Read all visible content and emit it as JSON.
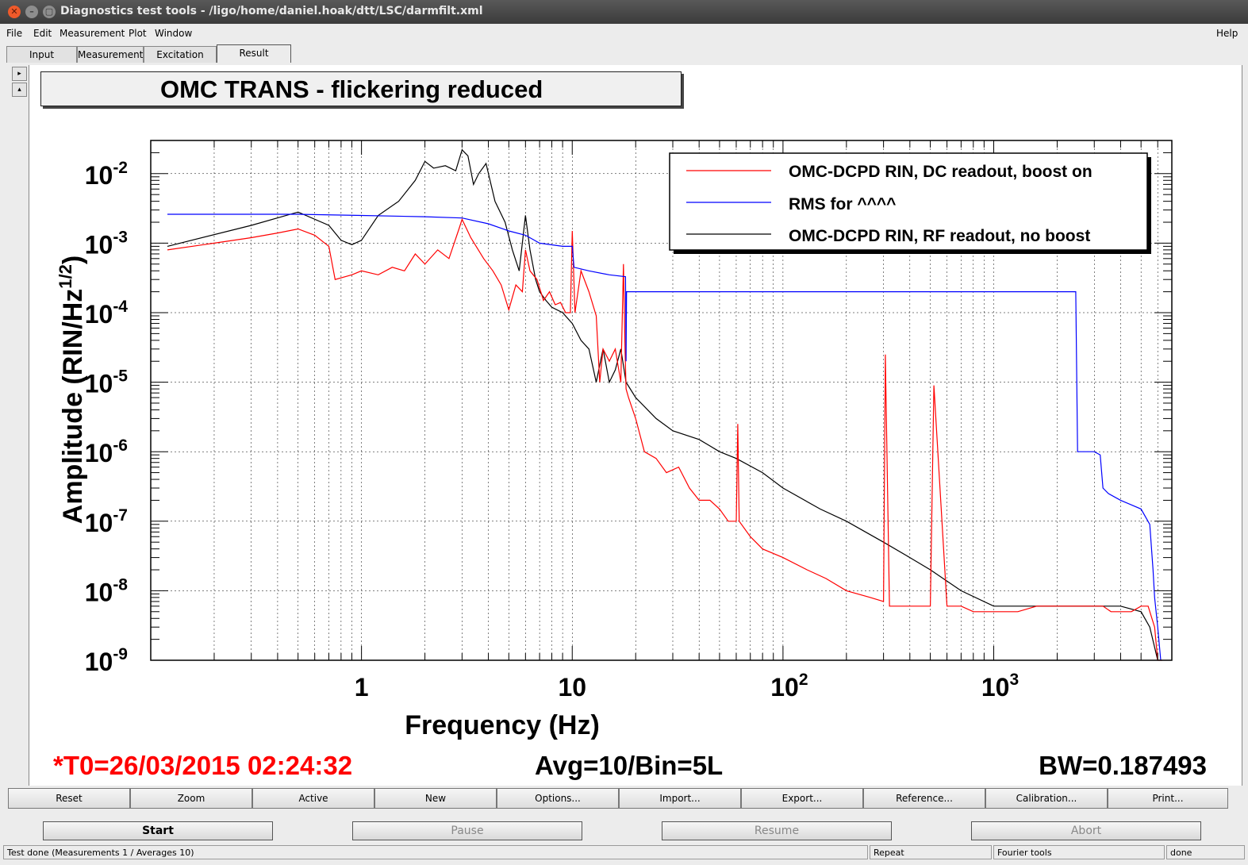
{
  "window": {
    "title": "Diagnostics test tools - /ligo/home/daniel.hoak/dtt/LSC/darmfilt.xml"
  },
  "menu": {
    "items": [
      "File",
      "Edit",
      "Measurement",
      "Plot",
      "Window"
    ],
    "help": "Help"
  },
  "tabs": [
    "Input",
    "Measurement",
    "Excitation",
    "Result"
  ],
  "active_tab": "Result",
  "plot": {
    "title_box": "OMC TRANS - flickering reduced",
    "t0": "*T0=26/03/2015 02:24:32",
    "avg": "Avg=10/Bin=5L",
    "bw": "BW=0.187493"
  },
  "chart_data": {
    "type": "line",
    "title": "OMC TRANS - flickering reduced",
    "xlabel": "Frequency (Hz)",
    "ylabel_main": "Amplitude (RIN/Hz",
    "ylabel_sup": "1/2",
    "ylabel_close": ")",
    "xscale": "log",
    "yscale": "log",
    "xlim": [
      0.1,
      7000
    ],
    "ylim": [
      1e-09,
      0.03
    ],
    "x_tick_labels": [
      {
        "value": 1,
        "base": "1",
        "exp": ""
      },
      {
        "value": 10,
        "base": "10",
        "exp": ""
      },
      {
        "value": 100,
        "base": "10",
        "exp": "2"
      },
      {
        "value": 1000,
        "base": "10",
        "exp": "3"
      }
    ],
    "y_tick_labels": [
      {
        "value": 0.01,
        "base": "10",
        "exp": "-2"
      },
      {
        "value": 0.001,
        "base": "10",
        "exp": "-3"
      },
      {
        "value": 0.0001,
        "base": "10",
        "exp": "-4"
      },
      {
        "value": 1e-05,
        "base": "10",
        "exp": "-5"
      },
      {
        "value": 1e-06,
        "base": "10",
        "exp": "-6"
      },
      {
        "value": 1e-07,
        "base": "10",
        "exp": "-7"
      },
      {
        "value": 1e-08,
        "base": "10",
        "exp": "-8"
      },
      {
        "value": 1e-09,
        "base": "10",
        "exp": "-9"
      }
    ],
    "grid": true,
    "legend_position": "top-right",
    "series": [
      {
        "name": "OMC-DCPD RIN, DC readout, boost on",
        "color": "#ff0000",
        "x": [
          0.12,
          0.2,
          0.3,
          0.4,
          0.5,
          0.6,
          0.7,
          0.75,
          0.9,
          1,
          1.2,
          1.4,
          1.6,
          1.8,
          2,
          2.3,
          2.6,
          2.9,
          3.0,
          3.3,
          3.8,
          4.2,
          4.6,
          5,
          5.4,
          5.8,
          6.0,
          6.3,
          6.8,
          7.3,
          7.8,
          8.3,
          8.8,
          9.3,
          9.8,
          10,
          10.3,
          11,
          12,
          13,
          13.5,
          14,
          15,
          16,
          17,
          17.5,
          17.8,
          18,
          18.5,
          20,
          22,
          25,
          28,
          32,
          36,
          40,
          45,
          50,
          55,
          60,
          61,
          62,
          70,
          80,
          100,
          130,
          160,
          200,
          260,
          300,
          306,
          320,
          400,
          500,
          520,
          600,
          700,
          800,
          1000,
          1300,
          1600,
          2000,
          2500,
          2900,
          3300,
          3600,
          4000,
          4500,
          5000,
          5400,
          5800,
          6000,
          6300
        ],
        "y": [
          0.0008,
          0.001,
          0.0012,
          0.0014,
          0.0016,
          0.0013,
          0.0009,
          0.0003,
          0.00035,
          0.0004,
          0.00035,
          0.00045,
          0.0004,
          0.0007,
          0.0005,
          0.0008,
          0.0006,
          0.0016,
          0.0022,
          0.0012,
          0.0006,
          0.0004,
          0.00025,
          0.00011,
          0.00025,
          0.0002,
          0.0008,
          0.0004,
          0.0003,
          0.00015,
          0.0002,
          0.00013,
          0.00014,
          0.0001,
          0.0001,
          0.0015,
          0.0001,
          0.0004,
          0.0002,
          9e-05,
          1e-05,
          3e-05,
          2e-05,
          3e-05,
          1e-05,
          0.0005,
          3e-05,
          8e-06,
          6e-06,
          3e-06,
          1e-06,
          8e-07,
          5e-07,
          6e-07,
          3e-07,
          2e-07,
          2e-07,
          1.5e-07,
          1e-07,
          1e-07,
          2.5e-06,
          1e-07,
          6e-08,
          4e-08,
          3e-08,
          2e-08,
          1.5e-08,
          1e-08,
          8e-09,
          7e-09,
          2.5e-05,
          6e-09,
          6e-09,
          6e-09,
          9e-06,
          6e-09,
          6e-09,
          5e-09,
          5e-09,
          5e-09,
          6e-09,
          6e-09,
          6e-09,
          6e-09,
          6e-09,
          5e-09,
          5e-09,
          5e-09,
          6e-09,
          6e-09,
          3e-09,
          1e-09,
          1e-09
        ]
      },
      {
        "name": "RMS for ^^^^",
        "color": "#0000ff",
        "x": [
          0.12,
          0.5,
          1,
          2,
          3,
          4,
          5,
          6,
          7,
          9,
          10,
          10.2,
          12,
          15,
          17.9,
          18,
          18.1,
          50,
          100,
          1000,
          2400,
          2450,
          2500,
          2600,
          3000,
          3200,
          3300,
          3500,
          4000,
          5000,
          5500,
          5700,
          5800,
          6000,
          6200
        ],
        "y": [
          0.0026,
          0.0026,
          0.0025,
          0.0024,
          0.0023,
          0.0019,
          0.0015,
          0.0013,
          0.001,
          0.0009,
          0.0009,
          0.00045,
          0.0004,
          0.00035,
          0.00033,
          2e-05,
          0.0002,
          0.0002,
          0.0002,
          0.0002,
          0.0002,
          0.0002,
          1e-06,
          1e-06,
          1e-06,
          9e-07,
          3e-07,
          2.5e-07,
          2e-07,
          1.5e-07,
          9e-08,
          2e-08,
          8e-09,
          3e-09,
          1e-09
        ]
      },
      {
        "name": "OMC-DCPD RIN, RF readout, no boost",
        "color": "#000000",
        "x": [
          0.12,
          0.3,
          0.5,
          0.7,
          0.8,
          0.9,
          1,
          1.2,
          1.5,
          1.8,
          2,
          2.2,
          2.5,
          2.8,
          3,
          3.2,
          3.4,
          3.6,
          3.9,
          4.3,
          4.8,
          5.2,
          5.6,
          6,
          6.3,
          6.7,
          7,
          7.5,
          8,
          9,
          10,
          11,
          12,
          13,
          14,
          15,
          16,
          17,
          18,
          20,
          25,
          30,
          40,
          50,
          60,
          80,
          100,
          150,
          200,
          300,
          400,
          500,
          700,
          1000,
          1500,
          2000,
          3000,
          4000,
          5000,
          5500,
          6000
        ],
        "y": [
          0.0009,
          0.0018,
          0.0028,
          0.0018,
          0.0011,
          0.00095,
          0.0011,
          0.0025,
          0.004,
          0.008,
          0.015,
          0.012,
          0.013,
          0.011,
          0.022,
          0.018,
          0.007,
          0.01,
          0.014,
          0.004,
          0.002,
          0.0008,
          0.0004,
          0.0025,
          0.0008,
          0.0003,
          0.0002,
          0.00015,
          0.00012,
          0.0001,
          7e-05,
          4e-05,
          3e-05,
          1e-05,
          3e-05,
          1e-05,
          1.5e-05,
          3e-05,
          1e-05,
          6e-06,
          3e-06,
          2e-06,
          1.5e-06,
          1e-06,
          8e-07,
          5e-07,
          3e-07,
          1.5e-07,
          1e-07,
          5e-08,
          3e-08,
          2e-08,
          1e-08,
          6e-09,
          6e-09,
          6e-09,
          6e-09,
          6e-09,
          5e-09,
          3e-09,
          1e-09
        ]
      }
    ]
  },
  "plot_buttons": [
    "Reset",
    "Zoom",
    "Active",
    "New",
    "Options...",
    "Import...",
    "Export...",
    "Reference...",
    "Calibration...",
    "Print..."
  ],
  "controls": {
    "start": "Start",
    "pause": "Pause",
    "resume": "Resume",
    "abort": "Abort"
  },
  "status": {
    "main": "Test done (Measurements 1 / Averages 10)",
    "repeat": "Repeat",
    "tools": "Fourier tools",
    "state": "done"
  }
}
